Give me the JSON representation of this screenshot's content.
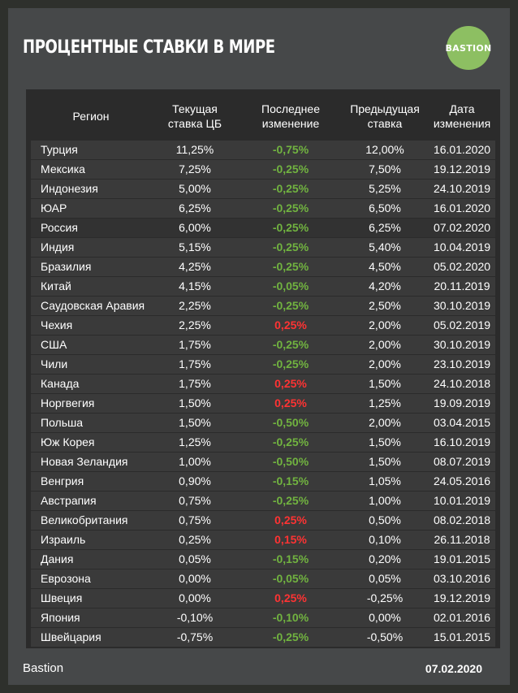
{
  "title": "ПРОЦЕНТНЫЕ СТАВКИ В МИРЕ",
  "logo": {
    "text": "BASTION",
    "color": "#8dbf62"
  },
  "colors": {
    "negative_change": "#71b340",
    "positive_change": "#ff3333"
  },
  "table": {
    "headers": [
      "Регион",
      "Текущая\nставка ЦБ",
      "Последнее\nизменение",
      "Предыдущая\nставка",
      "Дата\nизменения"
    ],
    "rows": [
      {
        "region": "Турция",
        "rate": "11,25%",
        "change": "-0,75%",
        "prev": "12,00%",
        "date": "16.01.2020"
      },
      {
        "region": "Мексика",
        "rate": "7,25%",
        "change": "-0,25%",
        "prev": "7,50%",
        "date": "19.12.2019"
      },
      {
        "region": "Индонезия",
        "rate": "5,00%",
        "change": "-0,25%",
        "prev": "5,25%",
        "date": "24.10.2019"
      },
      {
        "region": "ЮАР",
        "rate": "6,25%",
        "change": "-0,25%",
        "prev": "6,50%",
        "date": "16.01.2020"
      },
      {
        "region": "Россия",
        "rate": "6,00%",
        "change": "-0,25%",
        "prev": "6,25%",
        "date": "07.02.2020",
        "highlight": true
      },
      {
        "region": "Индия",
        "rate": "5,15%",
        "change": "-0,25%",
        "prev": "5,40%",
        "date": "10.04.2019"
      },
      {
        "region": "Бразилия",
        "rate": "4,25%",
        "change": "-0,25%",
        "prev": "4,50%",
        "date": "05.02.2020"
      },
      {
        "region": "Китай",
        "rate": "4,15%",
        "change": "-0,05%",
        "prev": "4,20%",
        "date": "20.11.2019"
      },
      {
        "region": "Саудовская Аравия",
        "rate": "2,25%",
        "change": "-0,25%",
        "prev": "2,50%",
        "date": "30.10.2019"
      },
      {
        "region": "Чехия",
        "rate": "2,25%",
        "change": "0,25%",
        "prev": "2,00%",
        "date": "05.02.2019"
      },
      {
        "region": "США",
        "rate": "1,75%",
        "change": "-0,25%",
        "prev": "2,00%",
        "date": "30.10.2019"
      },
      {
        "region": "Чили",
        "rate": "1,75%",
        "change": "-0,25%",
        "prev": "2,00%",
        "date": "23.10.2019"
      },
      {
        "region": "Канада",
        "rate": "1,75%",
        "change": "0,25%",
        "prev": "1,50%",
        "date": "24.10.2018"
      },
      {
        "region": "Норгвегия",
        "rate": "1,50%",
        "change": "0,25%",
        "prev": "1,25%",
        "date": "19.09.2019"
      },
      {
        "region": "Польша",
        "rate": "1,50%",
        "change": "-0,50%",
        "prev": "2,00%",
        "date": "03.04.2015"
      },
      {
        "region": "Юж Корея",
        "rate": "1,25%",
        "change": "-0,25%",
        "prev": "1,50%",
        "date": "16.10.2019"
      },
      {
        "region": "Новая Зеландия",
        "rate": "1,00%",
        "change": "-0,50%",
        "prev": "1,50%",
        "date": "08.07.2019"
      },
      {
        "region": "Венгрия",
        "rate": "0,90%",
        "change": "-0,15%",
        "prev": "1,05%",
        "date": "24.05.2016"
      },
      {
        "region": "Австрапия",
        "rate": "0,75%",
        "change": "-0,25%",
        "prev": "1,00%",
        "date": "10.01.2019"
      },
      {
        "region": "Великобритания",
        "rate": "0,75%",
        "change": "0,25%",
        "prev": "0,50%",
        "date": "08.02.2018"
      },
      {
        "region": "Израиль",
        "rate": "0,25%",
        "change": "0,15%",
        "prev": "0,10%",
        "date": "26.11.2018"
      },
      {
        "region": "Дания",
        "rate": "0,05%",
        "change": "-0,15%",
        "prev": "0,20%",
        "date": "19.01.2015"
      },
      {
        "region": "Еврозона",
        "rate": "0,00%",
        "change": "-0,05%",
        "prev": "0,05%",
        "date": "03.10.2016"
      },
      {
        "region": "Швеция",
        "rate": "0,00%",
        "change": "0,25%",
        "prev": "-0,25%",
        "date": "19.12.2019"
      },
      {
        "region": "Япония",
        "rate": "-0,10%",
        "change": "-0,10%",
        "prev": "0,00%",
        "date": "02.01.2016"
      },
      {
        "region": "Швейцария",
        "rate": "-0,75%",
        "change": "-0,25%",
        "prev": "-0,50%",
        "date": "15.01.2015"
      }
    ]
  },
  "footer": {
    "source": "Bastion",
    "date": "07.02.2020"
  }
}
